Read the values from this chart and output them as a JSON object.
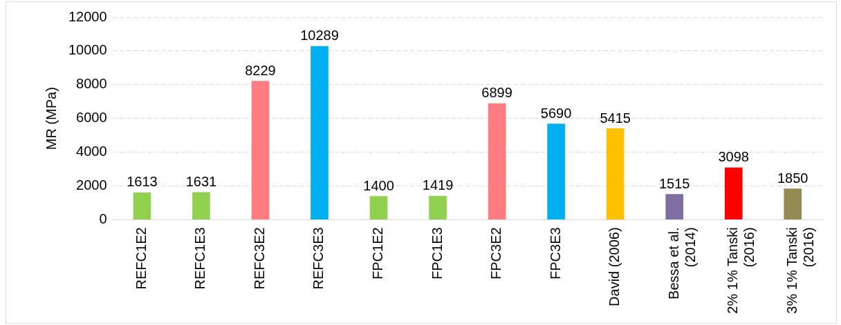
{
  "chart_data": {
    "type": "bar",
    "ylabel": "MR (MPa)",
    "categories": [
      "REFC1E2",
      "REFC1E3",
      "REFC3E2",
      "REFC3E3",
      "FPC1E2",
      "FPC1E3",
      "FPC3E2",
      "FPC3E3",
      "David (2006)",
      "Bessa et al. (2014)",
      "2% 1% Tanski (2016)",
      "3% 1% Tanski (2016)"
    ],
    "values": [
      1613,
      1631,
      8229,
      10289,
      1400,
      1419,
      6899,
      5690,
      5415,
      1515,
      3098,
      1850
    ],
    "colors": [
      "#92d050",
      "#92d050",
      "#ff7c80",
      "#00b0f0",
      "#92d050",
      "#92d050",
      "#ff7c80",
      "#00b0f0",
      "#ffc000",
      "#7f6fa0",
      "#ff0000",
      "#948a54"
    ],
    "ylim": [
      0,
      12000
    ],
    "yticks": [
      0,
      2000,
      4000,
      6000,
      8000,
      10000,
      12000
    ],
    "grid": "y",
    "data_labels": true
  }
}
